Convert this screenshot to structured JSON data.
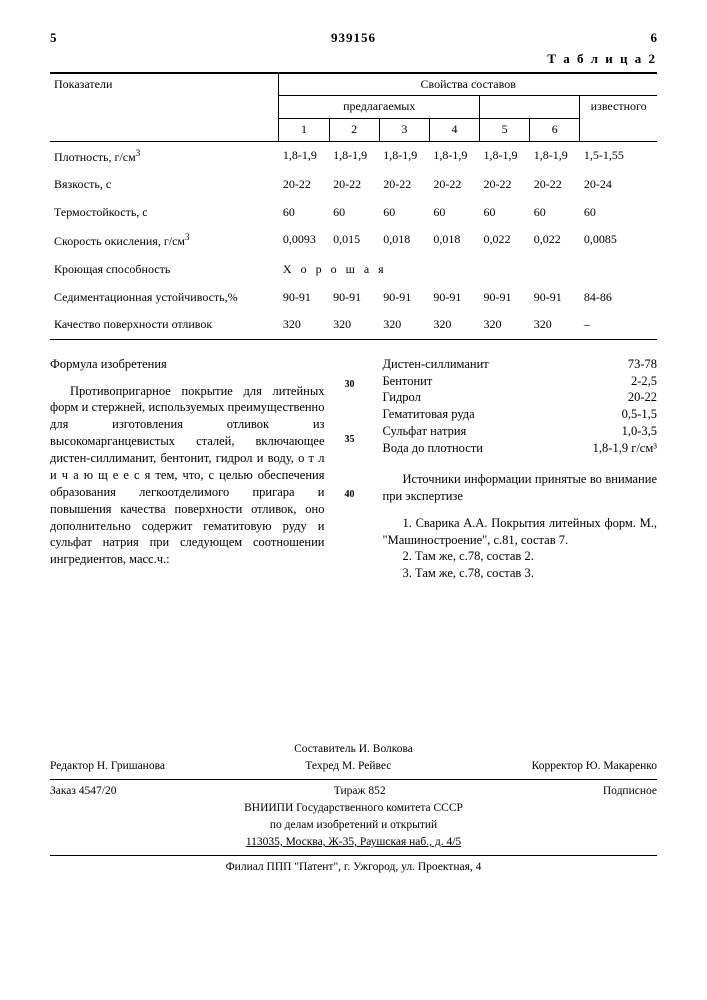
{
  "header": {
    "left_mark": "5",
    "doc_number": "939156",
    "right_mark": "6",
    "table_label": "Т а б л и ц а  2"
  },
  "table": {
    "col_header": "Показатели",
    "group_header": "Свойства составов",
    "sub1": "предлагаемых",
    "sub2": "известного",
    "cols": [
      "1",
      "2",
      "3",
      "4",
      "5",
      "6"
    ],
    "rows": [
      {
        "label": "Плотность, г/см",
        "sup": "3",
        "v": [
          "1,8-1,9",
          "1,8-1,9",
          "1,8-1,9",
          "1,8-1,9",
          "1,8-1,9",
          "1,8-1,9",
          "1,5-1,55"
        ]
      },
      {
        "label": "Вязкость, с",
        "v": [
          "20-22",
          "20-22",
          "20-22",
          "20-22",
          "20-22",
          "20-22",
          "20-24"
        ]
      },
      {
        "label": "Термостойкость, с",
        "v": [
          "60",
          "60",
          "60",
          "60",
          "60",
          "60",
          "60"
        ]
      },
      {
        "label": "Скорость окисления, г/см",
        "sup": "3",
        "v": [
          "0,0093",
          "0,015",
          "0,018",
          "0,018",
          "0,022",
          "0,022",
          "0,0085"
        ]
      },
      {
        "label": "Кроющая способность",
        "span": "Х о р о ш а я"
      },
      {
        "label": "Седиментационная устойчивость,%",
        "v": [
          "90-91",
          "90-91",
          "90-91",
          "90-91",
          "90-91",
          "90-91",
          "84-86"
        ]
      },
      {
        "label": "Качество поверхности отливок",
        "v": [
          "320",
          "320",
          "320",
          "320",
          "320",
          "320",
          "–"
        ]
      }
    ]
  },
  "left_col": {
    "title": "Формула изобретения",
    "body": "Противопригарное покрытие для литейных форм и стержней, используемых преимущественно для изготовления отливок из высокомарганцевистых сталей, включающее дистен-силлиманит, бентонит, гидрол и воду, о т л и ч а ю щ е е с я  тем, что, с целью обеспечения образования легкоотделимого пригара и повышения качества поверхности отливок, оно дополнительно содержит гематитовую руду и сульфат натрия при следующем соотношении ингредиентов, масс.ч.:"
  },
  "right_col": {
    "ingredients": [
      {
        "name": "Дистен-силлиманит",
        "val": "73-78"
      },
      {
        "name": "Бентонит",
        "val": "2-2,5"
      },
      {
        "name": "Гидрол",
        "val": "20-22"
      },
      {
        "name": "Гематитовая руда",
        "val": "0,5-1,5"
      },
      {
        "name": "Сульфат натрия",
        "val": "1,0-3,5"
      },
      {
        "name": "Вода до плотности",
        "val": "1,8-1,9 г/см³"
      }
    ],
    "sources_title": "Источники информации принятые во внимание при экспертизе",
    "s1": "1. Сварика А.А. Покрытия литейных форм. М., \"Машиностроение\", с.81, состав 7.",
    "s2": "2. Там же, с.78, состав 2.",
    "s3": "3. Там же, с.78, состав 3."
  },
  "line_nums": {
    "a": "30",
    "b": "35",
    "c": "40"
  },
  "footer": {
    "compiler": "Составитель И. Волкова",
    "editor": "Редактор Н. Гришанова",
    "techred": "Техред М. Рейвес",
    "corrector": "Корректор Ю. Макаренко",
    "order": "Заказ 4547/20",
    "tirage": "Тираж 852",
    "pod": "Подписное",
    "org1": "ВНИИПИ Государственного комитета СССР",
    "org2": "по делам изобретений и открытий",
    "addr1": "113035, Москва, Ж-35, Раушская наб., д. 4/5",
    "addr2": "Филиал ППП \"Патент\", г. Ужгород, ул. Проектная, 4"
  }
}
